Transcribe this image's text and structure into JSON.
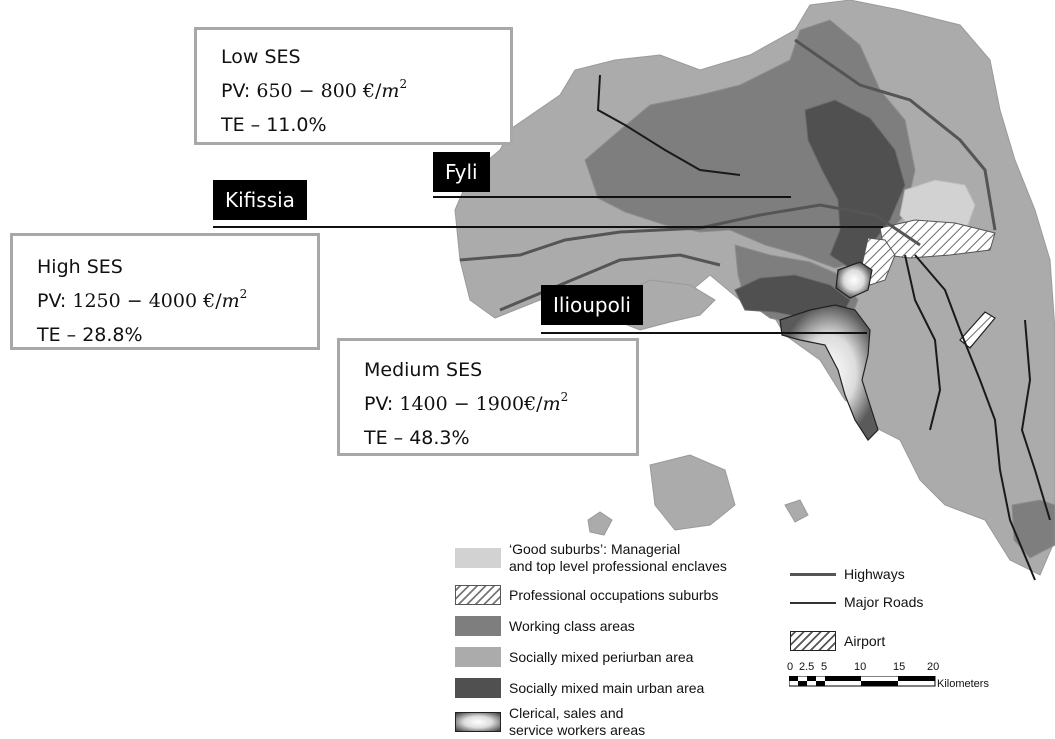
{
  "infoboxes": {
    "low": {
      "title": "Low SES",
      "pv_label": "PV: ",
      "pv_range": "650 − 800 €/",
      "pv_unit": "m",
      "pv_exp": "2",
      "te": "TE – 11.0%"
    },
    "high": {
      "title": "High SES",
      "pv_label": "PV: ",
      "pv_range": "1250 − 4000 €/",
      "pv_unit": "m",
      "pv_exp": "2",
      "te": "TE – 28.8%"
    },
    "medium": {
      "title": "Medium SES",
      "pv_label": "PV: ",
      "pv_range": "1400 − 1900€/",
      "pv_unit": "m",
      "pv_exp": "2",
      "te": "TE – 48.3%"
    }
  },
  "place_labels": {
    "fyli": "Fyli",
    "kifissia": "Kifissia",
    "ilioupoli": "Ilioupoli"
  },
  "legend": {
    "categories": [
      {
        "label": "‘Good suburbs’: Managerial",
        "label2": "and top level professional enclaves",
        "color": "#d2d2d2",
        "pattern": "solid"
      },
      {
        "label": "Professional occupations suburbs",
        "label2": "",
        "color": "#ffffff",
        "pattern": "hatch"
      },
      {
        "label": "Working class areas",
        "label2": "",
        "color": "#7e7e7e",
        "pattern": "solid"
      },
      {
        "label": "Socially mixed periurban area",
        "label2": "",
        "color": "#ababab",
        "pattern": "solid"
      },
      {
        "label": "Socially mixed main urban area",
        "label2": "",
        "color": "#505050",
        "pattern": "solid"
      },
      {
        "label": "Clerical, sales and",
        "label2": "service workers areas",
        "color": "#ffffff",
        "pattern": "radial"
      }
    ],
    "lines": [
      {
        "label": "Highways",
        "color": "#555555"
      },
      {
        "label": "Major Roads",
        "color": "#333333"
      }
    ],
    "airport": {
      "label": "Airport",
      "pattern": "hatch"
    }
  },
  "scale_bar": {
    "ticks": [
      "0",
      "2.5",
      "5",
      "10",
      "15",
      "20"
    ],
    "unit": "Kilometers"
  },
  "colors": {
    "good_suburbs": "#d2d2d2",
    "working_class": "#7e7e7e",
    "periurban": "#ababab",
    "main_urban": "#505050",
    "box_border": "#a8a8a8",
    "tag_bg": "#000000"
  }
}
